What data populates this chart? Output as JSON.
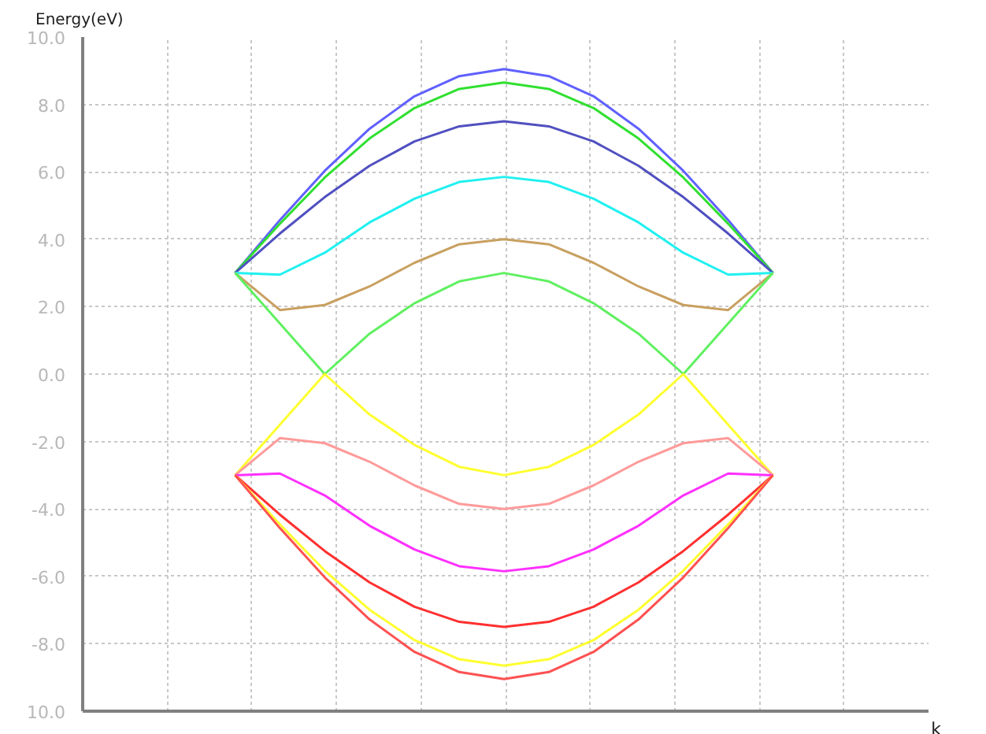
{
  "chart_data": {
    "type": "line",
    "annotations": [
      "k"
    ],
    "ylabel": "Energy(eV)",
    "categories": [
      null,
      null,
      null,
      null,
      null,
      null,
      null,
      null,
      null,
      null,
      null,
      null,
      null
    ],
    "ylim": [
      -10,
      10
    ],
    "yticks": [
      {
        "value": -10,
        "label": "10.0"
      },
      {
        "value": -8,
        "label": "-8.0"
      },
      {
        "value": -6,
        "label": "-6.0"
      },
      {
        "value": -4,
        "label": "-4.0"
      },
      {
        "value": -2,
        "label": "-2.0"
      },
      {
        "value": 0,
        "label": "0.0"
      },
      {
        "value": 2,
        "label": "2.0"
      },
      {
        "value": 4,
        "label": "4.0"
      },
      {
        "value": 6,
        "label": "6.0"
      },
      {
        "value": 8,
        "label": "8.0"
      },
      {
        "value": 10,
        "label": "10.0"
      }
    ],
    "tick_labels": "y",
    "grid": true,
    "series": [
      {
        "color": "#6060ff",
        "values": [
          3,
          4.57,
          6.03,
          7.28,
          8.24,
          8.84,
          9.05,
          8.84,
          8.24,
          7.28,
          6.03,
          4.57,
          3
        ]
      },
      {
        "color": "#30e030",
        "values": [
          3,
          4.46,
          5.83,
          6.99,
          7.89,
          8.46,
          8.65,
          8.46,
          7.89,
          6.99,
          5.83,
          4.46,
          3
        ]
      },
      {
        "color": "#5050c0",
        "values": [
          3,
          4.17,
          5.25,
          6.18,
          6.9,
          7.35,
          7.5,
          7.35,
          6.9,
          6.18,
          5.25,
          4.17,
          3
        ]
      },
      {
        "color": "#20f0f0",
        "values": [
          3,
          2.95,
          3.6,
          4.5,
          5.2,
          5.7,
          5.85,
          5.7,
          5.2,
          4.5,
          3.6,
          2.95,
          3
        ]
      },
      {
        "color": "#c8a060",
        "values": [
          3,
          1.9,
          2.05,
          2.6,
          3.3,
          3.85,
          4.0,
          3.85,
          3.3,
          2.6,
          2.05,
          1.9,
          3
        ]
      },
      {
        "color": "#60f060",
        "values": [
          3,
          1.5,
          0,
          1.2,
          2.1,
          2.75,
          3.0,
          2.75,
          2.1,
          1.2,
          0,
          1.5,
          3
        ]
      },
      {
        "color": "#ffff30",
        "values": [
          -3,
          -1.5,
          0,
          -1.2,
          -2.1,
          -2.75,
          -3.0,
          -2.75,
          -2.1,
          -1.2,
          0,
          -1.5,
          -3
        ]
      },
      {
        "color": "#ff9a9a",
        "values": [
          -3,
          -1.9,
          -2.05,
          -2.6,
          -3.3,
          -3.85,
          -4.0,
          -3.85,
          -3.3,
          -2.6,
          -2.05,
          -1.9,
          -3
        ]
      },
      {
        "color": "#ff30ff",
        "values": [
          -3,
          -2.95,
          -3.6,
          -4.5,
          -5.2,
          -5.7,
          -5.85,
          -5.7,
          -5.2,
          -4.5,
          -3.6,
          -2.95,
          -3
        ]
      },
      {
        "color": "#ff3030",
        "values": [
          -3,
          -4.17,
          -5.25,
          -6.18,
          -6.9,
          -7.35,
          -7.5,
          -7.35,
          -6.9,
          -6.18,
          -5.25,
          -4.17,
          -3
        ]
      },
      {
        "color": "#ffff30",
        "values": [
          -3,
          -4.46,
          -5.83,
          -6.99,
          -7.89,
          -8.46,
          -8.65,
          -8.46,
          -7.89,
          -6.99,
          -5.83,
          -4.46,
          -3
        ]
      },
      {
        "color": "#ff5050",
        "values": [
          -3,
          -4.57,
          -6.03,
          -7.28,
          -8.24,
          -8.84,
          -9.05,
          -8.84,
          -8.24,
          -7.28,
          -6.03,
          -4.57,
          -3
        ]
      }
    ]
  }
}
